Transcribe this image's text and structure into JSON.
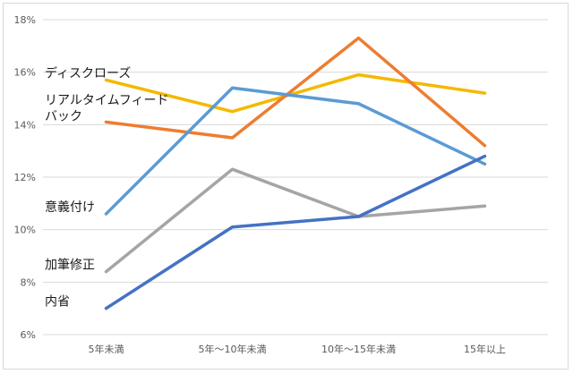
{
  "chart_data": {
    "type": "line",
    "categories": [
      "5年未満",
      "5年～10年未満",
      "10年～15年未満",
      "15年以上"
    ],
    "yticks": [
      "6%",
      "8%",
      "10%",
      "12%",
      "14%",
      "16%",
      "18%"
    ],
    "ylim": [
      6,
      18
    ],
    "grid": true,
    "series": [
      {
        "name": "ディスクローズ",
        "values": [
          15.7,
          14.5,
          15.9,
          15.2
        ],
        "color": "#f5b800"
      },
      {
        "name": "リアルタイムフィードバック",
        "label_lines": [
          "リアルタイムフィード",
          "バック"
        ],
        "values": [
          14.1,
          13.5,
          17.3,
          13.2
        ],
        "color": "#ed7d31"
      },
      {
        "name": "意義付け",
        "values": [
          10.6,
          15.4,
          14.8,
          12.5
        ],
        "color": "#5b9bd5"
      },
      {
        "name": "加筆修正",
        "values": [
          8.4,
          12.3,
          10.5,
          10.9
        ],
        "color": "#a5a5a5"
      },
      {
        "name": "内省",
        "values": [
          7.0,
          10.1,
          10.5,
          12.8
        ],
        "color": "#4472c4"
      }
    ]
  }
}
